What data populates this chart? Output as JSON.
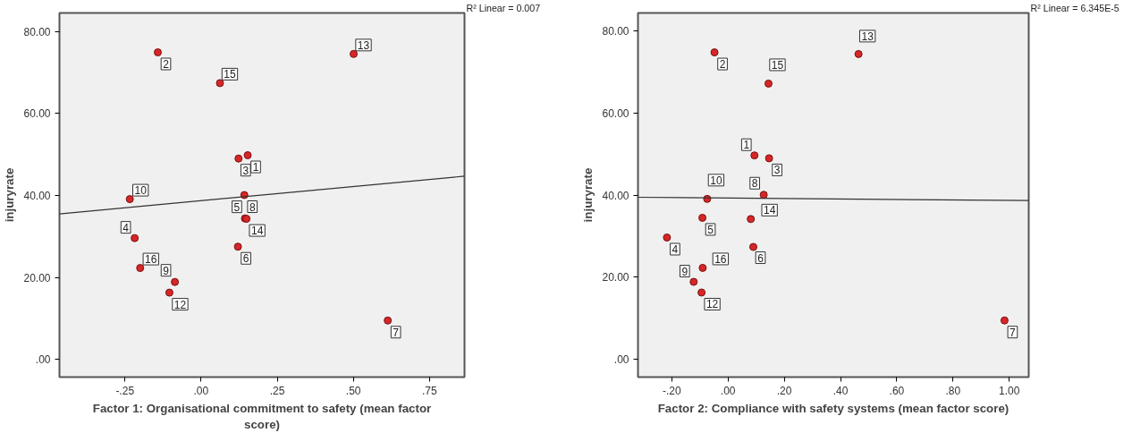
{
  "chart_data": [
    {
      "type": "scatter",
      "xlabel": "Factor 1: Organisational commitment to safety (mean factor score)",
      "ylabel": "injuryrate",
      "xlim": [
        -0.465,
        0.865
      ],
      "ylim": [
        -4.3,
        84.5
      ],
      "xticks": [
        {
          "value": -0.25,
          "label": "-.25"
        },
        {
          "value": 0,
          "label": ".00"
        },
        {
          "value": 0.25,
          "label": ".25"
        },
        {
          "value": 0.5,
          "label": ".50"
        },
        {
          "value": 0.75,
          "label": ".75"
        }
      ],
      "yticks": [
        {
          "value": 0,
          "label": ".00"
        },
        {
          "value": 20,
          "label": "20.00"
        },
        {
          "value": 40,
          "label": "40.00"
        },
        {
          "value": 60,
          "label": "60.00"
        },
        {
          "value": 80,
          "label": "80.00"
        }
      ],
      "grid": false,
      "series": [
        {
          "marker": "circle",
          "color": "#d62728",
          "x": [
            0.153,
            -0.142,
            0.123,
            -0.218,
            0.144,
            0.121,
            0.613,
            0.142,
            -0.086,
            -0.234,
            -0.104,
            0.501,
            0.149,
            0.062,
            -0.2
          ],
          "values": [
            49.8,
            74.9,
            49.0,
            29.6,
            34.4,
            27.5,
            9.5,
            40.1,
            18.9,
            39.1,
            16.3,
            74.5,
            34.3,
            67.4,
            22.3
          ]
        },
        {
          "type": "line",
          "color": "#333333",
          "x": [
            -0.465,
            0.865
          ],
          "values": [
            35.5,
            44.7
          ]
        }
      ],
      "annotations": [
        "R² Linear = 0.007",
        {
          "text": "1",
          "x": 0.153,
          "y": 49.8
        },
        {
          "text": "2",
          "x": -0.142,
          "y": 74.9
        },
        {
          "text": "3",
          "x": 0.123,
          "y": 49.0
        },
        {
          "text": "4",
          "x": -0.218,
          "y": 29.6
        },
        {
          "text": "5",
          "x": 0.144,
          "y": 34.4
        },
        {
          "text": "6",
          "x": 0.121,
          "y": 27.5
        },
        {
          "text": "7",
          "x": 0.613,
          "y": 9.5
        },
        {
          "text": "8",
          "x": 0.142,
          "y": 40.1
        },
        {
          "text": "9",
          "x": -0.086,
          "y": 18.9
        },
        {
          "text": "10",
          "x": -0.234,
          "y": 39.1
        },
        {
          "text": "12",
          "x": -0.104,
          "y": 16.3
        },
        {
          "text": "13",
          "x": 0.501,
          "y": 74.5
        },
        {
          "text": "14",
          "x": 0.149,
          "y": 34.3
        },
        {
          "text": "15",
          "x": 0.062,
          "y": 67.4
        },
        {
          "text": "16",
          "x": -0.2,
          "y": 22.3
        }
      ]
    },
    {
      "type": "scatter",
      "xlabel": "Factor 2: Compliance with safety systems (mean factor score)",
      "ylabel": "injuryrate",
      "xlim": [
        -0.32,
        1.069
      ],
      "ylim": [
        -4.3,
        84.4
      ],
      "xticks": [
        {
          "value": -0.2,
          "label": "-.20"
        },
        {
          "value": 0,
          "label": ".00"
        },
        {
          "value": 0.2,
          "label": ".20"
        },
        {
          "value": 0.4,
          "label": ".40"
        },
        {
          "value": 0.6,
          "label": ".60"
        },
        {
          "value": 0.8,
          "label": ".80"
        },
        {
          "value": 1,
          "label": "1.00"
        }
      ],
      "yticks": [
        {
          "value": 0,
          "label": ".00"
        },
        {
          "value": 20,
          "label": "20.00"
        },
        {
          "value": 40,
          "label": "40.00"
        },
        {
          "value": 60,
          "label": "60.00"
        },
        {
          "value": 80,
          "label": "80.00"
        }
      ],
      "grid": false,
      "series": [
        {
          "marker": "circle",
          "color": "#d62728",
          "x": [
            0.094,
            -0.048,
            0.146,
            -0.217,
            -0.091,
            0.09,
            0.983,
            0.127,
            -0.122,
            -0.074,
            -0.094,
            0.464,
            0.081,
            0.144,
            -0.09
          ],
          "values": [
            49.7,
            74.8,
            49.0,
            29.7,
            34.5,
            27.4,
            9.5,
            40.1,
            18.9,
            39.1,
            16.3,
            74.4,
            34.2,
            67.2,
            22.3
          ]
        },
        {
          "type": "line",
          "color": "#333333",
          "x": [
            -0.32,
            1.069
          ],
          "values": [
            39.5,
            38.7
          ]
        }
      ],
      "annotations": [
        "R² Linear = 6.345E-5",
        {
          "text": "1",
          "x": 0.094,
          "y": 49.7
        },
        {
          "text": "2",
          "x": -0.048,
          "y": 74.8
        },
        {
          "text": "3",
          "x": 0.146,
          "y": 49.0
        },
        {
          "text": "4",
          "x": -0.217,
          "y": 29.7
        },
        {
          "text": "5",
          "x": -0.091,
          "y": 34.5
        },
        {
          "text": "6",
          "x": 0.09,
          "y": 27.4
        },
        {
          "text": "7",
          "x": 0.983,
          "y": 9.5
        },
        {
          "text": "8",
          "x": 0.127,
          "y": 40.1
        },
        {
          "text": "9",
          "x": -0.122,
          "y": 18.9
        },
        {
          "text": "10",
          "x": -0.074,
          "y": 39.1
        },
        {
          "text": "12",
          "x": -0.094,
          "y": 16.3
        },
        {
          "text": "13",
          "x": 0.464,
          "y": 74.4
        },
        {
          "text": "14",
          "x": 0.081,
          "y": 34.2
        },
        {
          "text": "15",
          "x": 0.144,
          "y": 67.2
        },
        {
          "text": "16",
          "x": -0.09,
          "y": 22.3
        }
      ]
    }
  ]
}
